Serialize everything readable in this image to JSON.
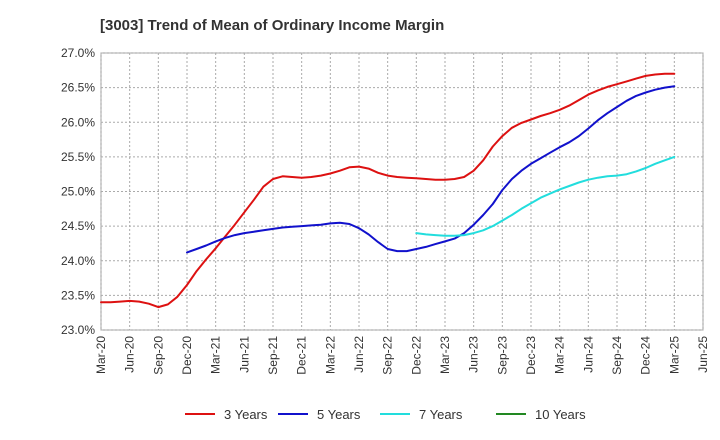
{
  "chart_data": {
    "type": "line",
    "title": "[3003]  Trend of Mean of Ordinary Income Margin",
    "xlabel": "",
    "ylabel": "",
    "ylim": [
      23.0,
      27.0
    ],
    "y_ticks": [
      "23.0%",
      "23.5%",
      "24.0%",
      "24.5%",
      "25.0%",
      "25.5%",
      "26.0%",
      "26.5%",
      "27.0%"
    ],
    "x_ticks": [
      "Mar-20",
      "Jun-20",
      "Sep-20",
      "Dec-20",
      "Mar-21",
      "Jun-21",
      "Sep-21",
      "Dec-21",
      "Mar-22",
      "Jun-22",
      "Sep-22",
      "Dec-22",
      "Mar-23",
      "Jun-23",
      "Sep-23",
      "Dec-23",
      "Mar-24",
      "Jun-24",
      "Sep-24",
      "Dec-24",
      "Mar-25",
      "Jun-25"
    ],
    "grid": true,
    "legend_position": "bottom",
    "series": [
      {
        "name": "3 Years",
        "color": "#dd1111",
        "x": [
          "Mar-20",
          "Apr-20",
          "May-20",
          "Jun-20",
          "Jul-20",
          "Aug-20",
          "Sep-20",
          "Oct-20",
          "Nov-20",
          "Dec-20",
          "Jan-21",
          "Feb-21",
          "Mar-21",
          "Apr-21",
          "May-21",
          "Jun-21",
          "Jul-21",
          "Aug-21",
          "Sep-21",
          "Oct-21",
          "Nov-21",
          "Dec-21",
          "Jan-22",
          "Feb-22",
          "Mar-22",
          "Apr-22",
          "May-22",
          "Jun-22",
          "Jul-22",
          "Aug-22",
          "Sep-22",
          "Oct-22",
          "Nov-22",
          "Dec-22",
          "Jan-23",
          "Feb-23",
          "Mar-23",
          "Apr-23",
          "May-23",
          "Jun-23",
          "Jul-23",
          "Aug-23",
          "Sep-23",
          "Oct-23",
          "Nov-23",
          "Dec-23",
          "Jan-24",
          "Feb-24",
          "Mar-24",
          "Apr-24",
          "May-24",
          "Jun-24",
          "Jul-24",
          "Aug-24",
          "Sep-24",
          "Oct-24",
          "Nov-24",
          "Dec-24",
          "Jan-25",
          "Feb-25",
          "Mar-25"
        ],
        "values": [
          23.4,
          23.4,
          23.41,
          23.42,
          23.41,
          23.38,
          23.33,
          23.37,
          23.48,
          23.65,
          23.85,
          24.02,
          24.18,
          24.35,
          24.52,
          24.7,
          24.88,
          25.07,
          25.18,
          25.22,
          25.21,
          25.2,
          25.21,
          25.23,
          25.26,
          25.3,
          25.35,
          25.36,
          25.33,
          25.27,
          25.23,
          25.21,
          25.2,
          25.19,
          25.18,
          25.17,
          25.17,
          25.18,
          25.21,
          25.3,
          25.45,
          25.65,
          25.8,
          25.92,
          25.99,
          26.04,
          26.09,
          26.13,
          26.18,
          26.24,
          26.32,
          26.4,
          26.46,
          26.51,
          26.55,
          26.59,
          26.63,
          26.67,
          26.69,
          26.7,
          26.7
        ]
      },
      {
        "name": "5 Years",
        "color": "#1111cc",
        "x": [
          "Dec-20",
          "Jan-21",
          "Feb-21",
          "Mar-21",
          "Apr-21",
          "May-21",
          "Jun-21",
          "Jul-21",
          "Aug-21",
          "Sep-21",
          "Oct-21",
          "Nov-21",
          "Dec-21",
          "Jan-22",
          "Feb-22",
          "Mar-22",
          "Apr-22",
          "May-22",
          "Jun-22",
          "Jul-22",
          "Aug-22",
          "Sep-22",
          "Oct-22",
          "Nov-22",
          "Dec-22",
          "Jan-23",
          "Feb-23",
          "Mar-23",
          "Apr-23",
          "May-23",
          "Jun-23",
          "Jul-23",
          "Aug-23",
          "Sep-23",
          "Oct-23",
          "Nov-23",
          "Dec-23",
          "Jan-24",
          "Feb-24",
          "Mar-24",
          "Apr-24",
          "May-24",
          "Jun-24",
          "Jul-24",
          "Aug-24",
          "Sep-24",
          "Oct-24",
          "Nov-24",
          "Dec-24",
          "Jan-25",
          "Feb-25",
          "Mar-25"
        ],
        "values": [
          24.12,
          24.17,
          24.22,
          24.28,
          24.33,
          24.37,
          24.4,
          24.42,
          24.44,
          24.46,
          24.48,
          24.49,
          24.5,
          24.51,
          24.52,
          24.54,
          24.55,
          24.53,
          24.47,
          24.38,
          24.27,
          24.17,
          24.14,
          24.14,
          24.17,
          24.2,
          24.24,
          24.28,
          24.32,
          24.4,
          24.52,
          24.66,
          24.82,
          25.02,
          25.18,
          25.3,
          25.4,
          25.48,
          25.56,
          25.64,
          25.71,
          25.8,
          25.91,
          26.03,
          26.13,
          26.22,
          26.31,
          26.38,
          26.43,
          26.47,
          26.5,
          26.52
        ]
      },
      {
        "name": "7 Years",
        "color": "#22dddd",
        "x": [
          "Dec-22",
          "Jan-23",
          "Feb-23",
          "Mar-23",
          "Apr-23",
          "May-23",
          "Jun-23",
          "Jul-23",
          "Aug-23",
          "Sep-23",
          "Oct-23",
          "Nov-23",
          "Dec-23",
          "Jan-24",
          "Feb-24",
          "Mar-24",
          "Apr-24",
          "May-24",
          "Jun-24",
          "Jul-24",
          "Aug-24",
          "Sep-24",
          "Oct-24",
          "Nov-24",
          "Dec-24",
          "Jan-25",
          "Feb-25",
          "Mar-25"
        ],
        "values": [
          24.4,
          24.38,
          24.37,
          24.36,
          24.36,
          24.37,
          24.4,
          24.44,
          24.5,
          24.58,
          24.66,
          24.75,
          24.83,
          24.91,
          24.97,
          25.03,
          25.08,
          25.13,
          25.17,
          25.2,
          25.22,
          25.23,
          25.25,
          25.29,
          25.34,
          25.4,
          25.45,
          25.5
        ]
      },
      {
        "name": "10 Years",
        "color": "#228822",
        "x": [],
        "values": []
      }
    ]
  }
}
